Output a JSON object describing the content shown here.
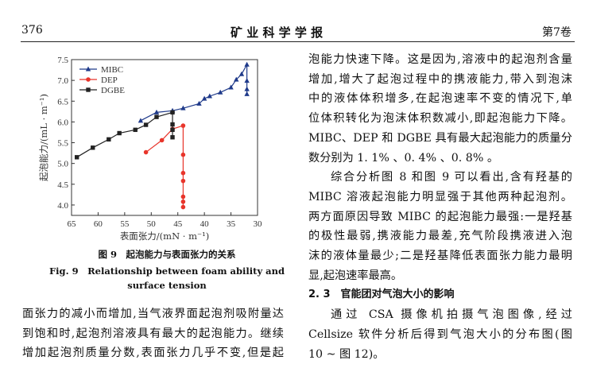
{
  "header": {
    "page_number": "376",
    "journal": "矿 业 科 学 学 报",
    "volume": "第7卷"
  },
  "figure": {
    "caption_cn": "图 9　起泡能力与表面张力的关系",
    "caption_en_1": "Fig. 9　Relationship between foam ability and",
    "caption_en_2": "surface tension"
  },
  "chart_data": {
    "type": "line",
    "xlabel": "表面张力/(mN · m⁻¹)",
    "ylabel": "起泡能力/(mL · m⁻¹)",
    "xlim": [
      65,
      30
    ],
    "ylim": [
      3.75,
      7.5
    ],
    "xticks": [
      "65",
      "60",
      "55",
      "50",
      "45",
      "40",
      "35",
      "30"
    ],
    "yticks": [
      "4.0",
      "4.5",
      "5.0",
      "5.5",
      "6.0",
      "6.5",
      "7.0",
      "7.5"
    ],
    "legend_position": "top-left",
    "series": [
      {
        "name": "MIBC",
        "color": "#1f3a8a",
        "marker": "triangle",
        "x": [
          52,
          49,
          46,
          44,
          41,
          40,
          39,
          37,
          35,
          34,
          33,
          32,
          32,
          32,
          32
        ],
        "y": [
          6.03,
          6.23,
          6.27,
          6.33,
          6.44,
          6.56,
          6.62,
          6.71,
          6.83,
          7.02,
          7.15,
          7.38,
          6.99,
          6.79,
          6.67
        ]
      },
      {
        "name": "DEP",
        "color": "#e8352b",
        "marker": "circle",
        "x": [
          51,
          48,
          46,
          44,
          44,
          44,
          44,
          44,
          44,
          44
        ],
        "y": [
          5.27,
          5.56,
          5.83,
          5.91,
          5.21,
          4.77,
          4.58,
          4.2,
          4.08,
          3.95
        ]
      },
      {
        "name": "DGBE",
        "color": "#222222",
        "marker": "square",
        "x": [
          64,
          61,
          58,
          56,
          53,
          51,
          49,
          46,
          46,
          46,
          46
        ],
        "y": [
          5.15,
          5.38,
          5.58,
          5.73,
          5.81,
          5.93,
          6.12,
          6.23,
          5.94,
          5.81,
          5.63
        ]
      }
    ]
  },
  "left_text": [
    "面张力的减小而增加,当气液界面起泡剂吸附量达",
    "到饱和时,起泡剂溶液具有最大的起泡能力。继续",
    "增加起泡剂质量分数,表面张力几乎不变,但是起"
  ],
  "right_text": [
    "泡能力快速下降。这是因为,溶液中的起泡剂含量",
    "增加,增大了起泡过程中的携液能力,带入到泡沫",
    "中的液体体积增多,在起泡速率不变的情况下,单",
    "位体积转化为泡沫体积数减小,即起泡能力下降。",
    "MIBC、DEP 和 DGBE 具有最大起泡能力的质量分",
    "数分别为 1. 1% 、0. 4% 、0. 8% 。",
    "综合分析图 8 和图 9 可以看出,含有羟基的",
    "MIBC 溶液起泡能力明显强于其他两种起泡剂。",
    "两方面原因导致 MIBC 的起泡能力最强:一是羟基",
    "的极性最弱,携液能力最差,充气阶段携液进入泡",
    "沫的液体量最少;二是羟基降低表面张力能力最明",
    "显,起泡速率最高。",
    "2. 3　官能团对气泡大小的影响",
    "通过 CSA 摄像机拍摄气泡图像,经过",
    "Cellsize 软件分析后得到气泡大小的分布图(图",
    "10 ~ 图 12)。"
  ]
}
